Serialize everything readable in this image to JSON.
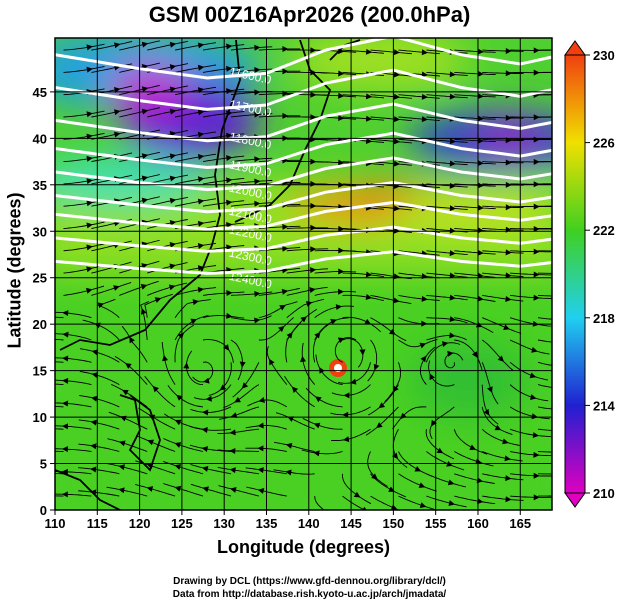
{
  "title": "GSM 00Z16Apr2026 (200.0hPa)",
  "footer": {
    "line1": "Drawing by DCL (https://www.gfd-dennou.org/library/dcl/)",
    "line2": "Data from http://database.rish.kyoto-u.ac.jp/arch/jmadata/"
  },
  "chart_data": {
    "type": "map",
    "xlabel": "Longitude (degrees)",
    "ylabel": "Latitude  (degrees)",
    "xlim": [
      110,
      168.75
    ],
    "ylim": [
      0,
      50.8
    ],
    "xticks": [
      "110",
      "115",
      "120",
      "125",
      "130",
      "135",
      "140",
      "145",
      "150",
      "155",
      "160",
      "165"
    ],
    "yticks": [
      "0",
      "5",
      "10",
      "15",
      "20",
      "25",
      "30",
      "35",
      "40",
      "45"
    ],
    "grid": true,
    "shading_variable": "temperature (K)",
    "colorbar": {
      "range": [
        210,
        230
      ],
      "ticks": [
        "230",
        "226",
        "222",
        "218",
        "214",
        "210"
      ],
      "colors": [
        "#e000c0",
        "#2020d0",
        "#20d0f0",
        "#40d020",
        "#f0e000",
        "#f04010"
      ]
    },
    "contours": [
      {
        "label": "11600.0",
        "lat": 48.5
      },
      {
        "label": "11700.0",
        "lat": 45
      },
      {
        "label": "11800.0",
        "lat": 41.5
      },
      {
        "label": "11900.0",
        "lat": 38.5
      },
      {
        "label": "12000.0",
        "lat": 36
      },
      {
        "label": "12100.0",
        "lat": 33.5
      },
      {
        "label": "12200.0",
        "lat": 31.5
      },
      {
        "label": "12300.0",
        "lat": 29
      },
      {
        "label": "12400.0",
        "lat": 26.5
      }
    ],
    "vortices": [
      {
        "lon": 144.5,
        "lat": 17,
        "type": "typhoon"
      },
      {
        "lon": 127.5,
        "lat": 15
      },
      {
        "lon": 157,
        "lat": 16
      }
    ]
  }
}
